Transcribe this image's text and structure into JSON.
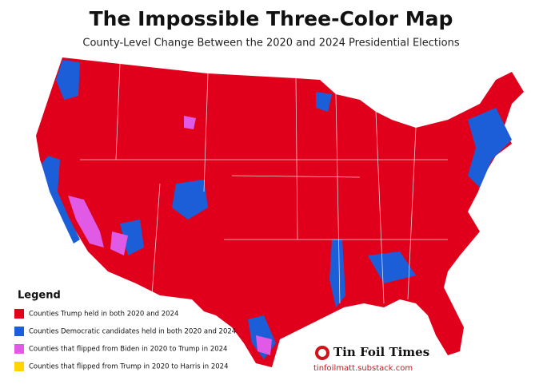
{
  "header": {
    "title": "The Impossible Three-Color Map",
    "subtitle": "County-Level Change Between the 2020 and 2024 Presidential Elections"
  },
  "legend": {
    "title": "Legend",
    "items": [
      {
        "label": "Counties Trump held in both 2020 and 2024",
        "color": "#e0001b"
      },
      {
        "label": "Counties Democratic candidates held in both 2020 and 2024",
        "color": "#1b5ed8"
      },
      {
        "label": "Counties that flipped from Biden in 2020 to Trump in 2024",
        "color": "#e05ae6"
      },
      {
        "label": "Counties that flipped from Trump in 2020 to Harris in 2024",
        "color": "#ffd500"
      }
    ]
  },
  "brand": {
    "name": "Tin Foil Times",
    "url": "tinfoilmatt.substack.com"
  }
}
